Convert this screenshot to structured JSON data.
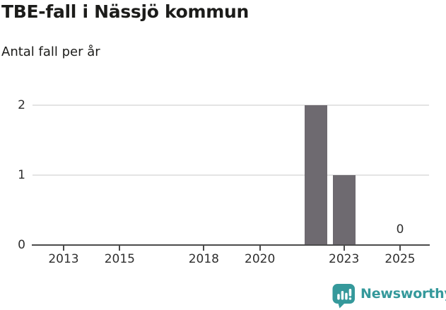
{
  "header": {
    "title": "TBE-fall i Nässjö kommun",
    "subtitle": "Antal fall per år"
  },
  "chart_data": {
    "type": "bar",
    "title": "TBE-fall i Nässjö kommun",
    "subtitle": "Antal fall per år",
    "xlabel": "",
    "ylabel": "Antal fall per år",
    "ylim": [
      0,
      2
    ],
    "x_domain": [
      2012,
      2026
    ],
    "x_ticks": [
      2013,
      2015,
      2018,
      2020,
      2023,
      2025
    ],
    "y_ticks": [
      0,
      1,
      2
    ],
    "grid": "horizontal gridlines at y=1 and y=2",
    "legend": "none",
    "bar_color": "#6e6a70",
    "series": [
      {
        "name": "TBE-fall",
        "points": [
          {
            "x": 2022,
            "y": 2
          },
          {
            "x": 2023,
            "y": 1
          },
          {
            "x": 2025,
            "y": 0,
            "label": "0"
          }
        ]
      }
    ]
  },
  "footer": {
    "brand": "Newsworthy"
  },
  "colors": {
    "accent_teal": "#35999b",
    "bar": "#6e6a70",
    "axis": "#4b4b4b",
    "gridline": "#e4e4e4",
    "text": "#1c1c1a"
  }
}
